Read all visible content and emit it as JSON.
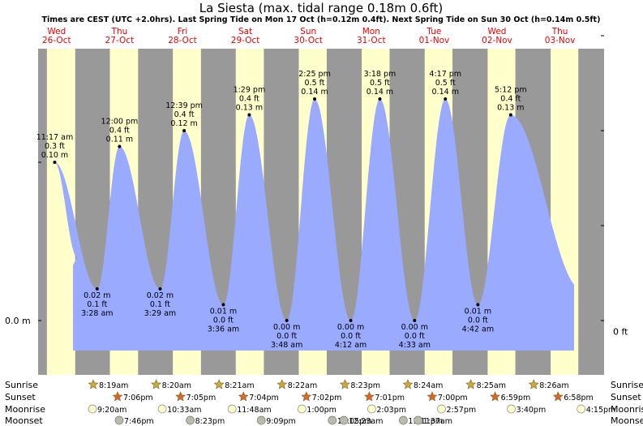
{
  "title": "La Siesta (max. tidal range 0.18m 0.6ft)",
  "subtitle": "Times are CEST (UTC +2.0hrs). Last Spring Tide on Mon 17 Oct (h=0.12m 0.4ft). Next Spring Tide on Sun 30 Oct (h=0.14m 0.5ft)",
  "colors": {
    "night": "#999999",
    "day": "#ffffcc",
    "water": "#99aaff",
    "day_header_text": "#ee0000",
    "text": "#000000"
  },
  "days": [
    {
      "dow": "Wed",
      "date": "26-Oct",
      "sunrise": "8:19am",
      "sunset": "7:06pm",
      "moonrise": "9:20am",
      "moonset": "7:46pm"
    },
    {
      "dow": "Thu",
      "date": "27-Oct",
      "sunrise": "8:20am",
      "sunset": "7:05pm",
      "moonrise": "10:33am",
      "moonset": "8:23pm"
    },
    {
      "dow": "Fri",
      "date": "28-Oct",
      "sunrise": "8:21am",
      "sunset": "7:04pm",
      "moonrise": "11:48am",
      "moonset": "9:09pm"
    },
    {
      "dow": "Sat",
      "date": "29-Oct",
      "sunrise": "8:22am",
      "sunset": "7:02pm",
      "moonrise": "1:00pm",
      "moonset": "10:05pm"
    },
    {
      "dow": "Sun",
      "date": "30-Oct",
      "sunrise": "8:23pm",
      "sunset": "7:01pm",
      "moonrise": "2:03pm",
      "moonset": "11:11pm"
    },
    {
      "dow": "Mon",
      "date": "31-Oct",
      "sunrise": "8:24am",
      "sunset": "7:00pm",
      "moonrise": "2:57pm",
      "moonset": "12:23am"
    },
    {
      "dow": "Tue",
      "date": "01-Nov",
      "sunrise": "8:25am",
      "sunset": "6:59pm",
      "moonrise": "3:40pm",
      "moonset": "1:37am"
    },
    {
      "dow": "Wed",
      "date": "02-Nov",
      "sunrise": "8:26am",
      "sunset": "6:58pm",
      "moonrise": "4:15pm",
      "moonset": ""
    },
    {
      "dow": "Thu",
      "date": "03-Nov",
      "sunrise": "",
      "sunset": "",
      "moonrise": "",
      "moonset": ""
    }
  ],
  "row_labels": [
    "Sunrise",
    "Sunset",
    "Moonrise",
    "Moonset"
  ],
  "axis": {
    "left_label": "0.0 m",
    "right_label": "0 ft"
  },
  "chart_data": {
    "type": "area",
    "title": "La Siesta (max. tidal range 0.18m 0.6ft)",
    "xlabel": "",
    "ylabel": "",
    "ylim": [
      -0.02,
      0.2
    ],
    "tides": [
      {
        "kind": "high",
        "time": "11:17 am",
        "m": "0.10 m",
        "ft": "0.3 ft",
        "day": 0,
        "hour": 11.28,
        "h": 0.1
      },
      {
        "kind": "low",
        "time": "3:28 am",
        "m": "0.02 m",
        "ft": "0.1 ft",
        "day": 1,
        "hour": 3.47,
        "h": 0.02
      },
      {
        "kind": "high",
        "time": "12:00 pm",
        "m": "0.11 m",
        "ft": "0.4 ft",
        "day": 1,
        "hour": 12.0,
        "h": 0.11
      },
      {
        "kind": "low",
        "time": "3:29 am",
        "m": "0.02 m",
        "ft": "0.1 ft",
        "day": 2,
        "hour": 3.48,
        "h": 0.02
      },
      {
        "kind": "high",
        "time": "12:39 pm",
        "m": "0.12 m",
        "ft": "0.4 ft",
        "day": 2,
        "hour": 12.65,
        "h": 0.12
      },
      {
        "kind": "low",
        "time": "3:36 am",
        "m": "0.01 m",
        "ft": "0.0 ft",
        "day": 3,
        "hour": 3.6,
        "h": 0.01
      },
      {
        "kind": "high",
        "time": "1:29 pm",
        "m": "0.13 m",
        "ft": "0.4 ft",
        "day": 3,
        "hour": 13.48,
        "h": 0.13
      },
      {
        "kind": "low",
        "time": "3:48 am",
        "m": "0.00 m",
        "ft": "0.0 ft",
        "day": 4,
        "hour": 3.8,
        "h": 0.0
      },
      {
        "kind": "high",
        "time": "2:25 pm",
        "m": "0.14 m",
        "ft": "0.5 ft",
        "day": 4,
        "hour": 14.42,
        "h": 0.14
      },
      {
        "kind": "low",
        "time": "4:12 am",
        "m": "0.00 m",
        "ft": "0.0 ft",
        "day": 5,
        "hour": 4.2,
        "h": 0.0
      },
      {
        "kind": "high",
        "time": "3:18 pm",
        "m": "0.14 m",
        "ft": "0.5 ft",
        "day": 5,
        "hour": 15.3,
        "h": 0.14
      },
      {
        "kind": "low",
        "time": "4:33 am",
        "m": "0.00 m",
        "ft": "0.0 ft",
        "day": 6,
        "hour": 4.55,
        "h": 0.0
      },
      {
        "kind": "high",
        "time": "4:17 pm",
        "m": "0.14 m",
        "ft": "0.5 ft",
        "day": 6,
        "hour": 16.28,
        "h": 0.14
      },
      {
        "kind": "low",
        "time": "4:42 am",
        "m": "0.01 m",
        "ft": "0.0 ft",
        "day": 7,
        "hour": 4.7,
        "h": 0.01
      },
      {
        "kind": "high",
        "time": "5:12 pm",
        "m": "0.13 m",
        "ft": "0.4 ft",
        "day": 7,
        "hour": 17.2,
        "h": 0.13
      }
    ]
  }
}
